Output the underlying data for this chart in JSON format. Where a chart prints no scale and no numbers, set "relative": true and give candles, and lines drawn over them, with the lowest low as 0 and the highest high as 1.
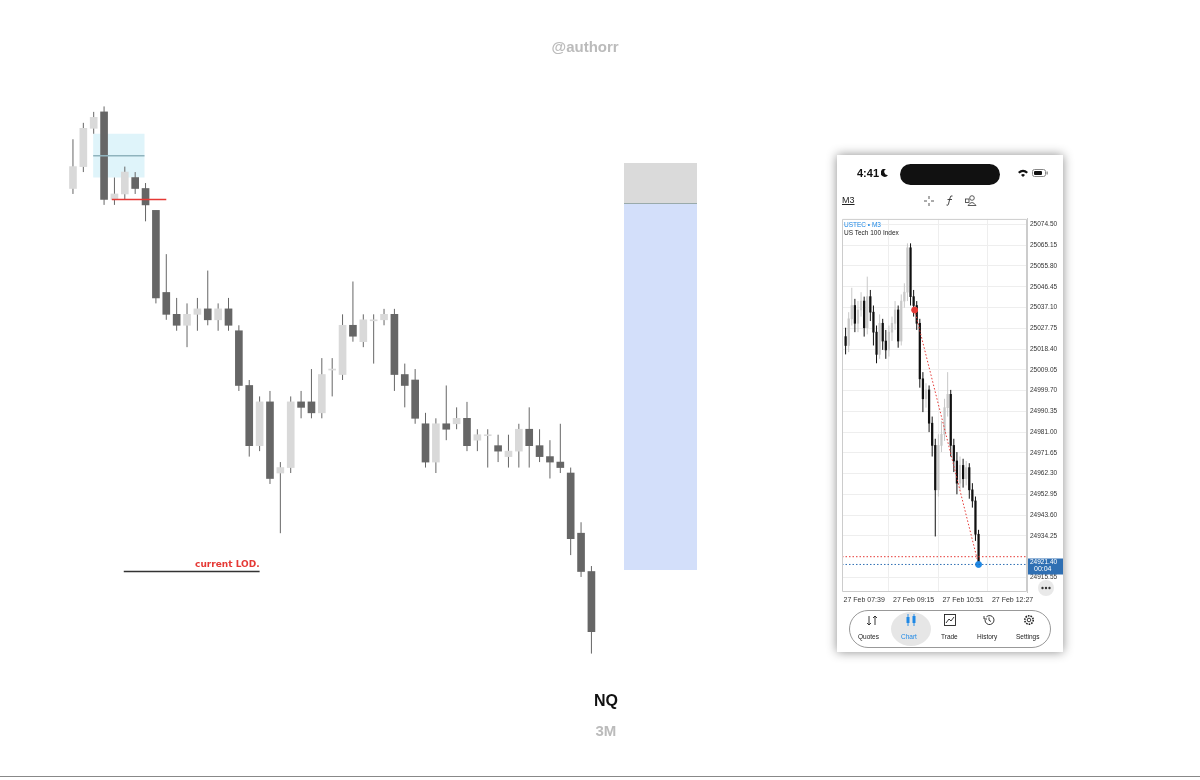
{
  "chart_data": [
    {
      "type": "candlestick",
      "title": "NQ",
      "subtitle": "3M",
      "relative": true,
      "annotations": [
        "@authorr"
      ],
      "categories": [
        null,
        null,
        null,
        null,
        null,
        null,
        null,
        null,
        null,
        null,
        null,
        null,
        null,
        null,
        null,
        null,
        null,
        null,
        null,
        null,
        null,
        null,
        null,
        null,
        null,
        null,
        null,
        null,
        null,
        null,
        null,
        null,
        null,
        null,
        null,
        null,
        null,
        null,
        null,
        null,
        null,
        null,
        null,
        null,
        null,
        null,
        null,
        null,
        null,
        null,
        null
      ],
      "ohlc": [
        [
          0.85,
          0.94,
          0.84,
          0.89
        ],
        [
          0.89,
          0.97,
          0.88,
          0.96
        ],
        [
          0.96,
          0.99,
          0.95,
          0.98
        ],
        [
          0.99,
          1.0,
          0.82,
          0.83
        ],
        [
          0.83,
          0.87,
          0.82,
          0.84
        ],
        [
          0.84,
          0.89,
          0.83,
          0.88
        ],
        [
          0.87,
          0.88,
          0.84,
          0.85
        ],
        [
          0.85,
          0.86,
          0.79,
          0.82
        ],
        [
          0.81,
          0.81,
          0.64,
          0.65
        ],
        [
          0.66,
          0.73,
          0.61,
          0.62
        ],
        [
          0.62,
          0.65,
          0.59,
          0.6
        ],
        [
          0.6,
          0.64,
          0.56,
          0.62
        ],
        [
          0.62,
          0.65,
          0.59,
          0.63
        ],
        [
          0.63,
          0.7,
          0.6,
          0.61
        ],
        [
          0.61,
          0.64,
          0.59,
          0.63
        ],
        [
          0.63,
          0.65,
          0.59,
          0.6
        ],
        [
          0.59,
          0.6,
          0.48,
          0.49
        ],
        [
          0.49,
          0.5,
          0.36,
          0.38
        ],
        [
          0.38,
          0.47,
          0.37,
          0.46
        ],
        [
          0.46,
          0.48,
          0.31,
          0.32
        ],
        [
          0.33,
          0.35,
          0.22,
          0.34
        ],
        [
          0.34,
          0.47,
          0.33,
          0.46
        ],
        [
          0.46,
          0.48,
          0.43,
          0.45
        ],
        [
          0.46,
          0.52,
          0.43,
          0.44
        ],
        [
          0.44,
          0.54,
          0.43,
          0.51
        ],
        [
          0.52,
          0.54,
          0.47,
          0.52
        ],
        [
          0.51,
          0.62,
          0.5,
          0.6
        ],
        [
          0.6,
          0.68,
          0.57,
          0.58
        ],
        [
          0.57,
          0.62,
          0.56,
          0.61
        ],
        [
          0.61,
          0.62,
          0.53,
          0.61
        ],
        [
          0.61,
          0.63,
          0.6,
          0.62
        ],
        [
          0.62,
          0.63,
          0.48,
          0.51
        ],
        [
          0.51,
          0.53,
          0.45,
          0.49
        ],
        [
          0.5,
          0.52,
          0.42,
          0.43
        ],
        [
          0.42,
          0.44,
          0.34,
          0.35
        ],
        [
          0.35,
          0.43,
          0.33,
          0.42
        ],
        [
          0.42,
          0.49,
          0.39,
          0.41
        ],
        [
          0.42,
          0.45,
          0.41,
          0.43
        ],
        [
          0.43,
          0.46,
          0.37,
          0.38
        ],
        [
          0.39,
          0.41,
          0.37,
          0.4
        ],
        [
          0.4,
          0.41,
          0.34,
          0.4
        ],
        [
          0.38,
          0.4,
          0.35,
          0.37
        ],
        [
          0.36,
          0.4,
          0.34,
          0.37
        ],
        [
          0.37,
          0.42,
          0.34,
          0.41
        ],
        [
          0.41,
          0.45,
          0.34,
          0.38
        ],
        [
          0.38,
          0.41,
          0.35,
          0.36
        ],
        [
          0.36,
          0.39,
          0.32,
          0.35
        ],
        [
          0.35,
          0.42,
          0.33,
          0.34
        ],
        [
          0.33,
          0.34,
          0.18,
          0.21
        ],
        [
          0.22,
          0.24,
          0.14,
          0.15
        ],
        [
          0.15,
          0.16,
          0,
          0.04
        ]
      ],
      "colors": [
        "#d9d9d9",
        "#d9d9d9",
        "#d9d9d9",
        "#666666",
        "#d9d9d9",
        "#d9d9d9",
        "#666666",
        "#666666",
        "#666666",
        "#666666",
        "#666666",
        "#d9d9d9",
        "#d9d9d9",
        "#666666",
        "#d9d9d9",
        "#666666",
        "#666666",
        "#666666",
        "#d9d9d9",
        "#666666",
        "#d9d9d9",
        "#d9d9d9",
        "#666666",
        "#666666",
        "#d9d9d9",
        "#d9d9d9",
        "#d9d9d9",
        "#666666",
        "#d9d9d9",
        "#d9d9d9",
        "#d9d9d9",
        "#666666",
        "#666666",
        "#666666",
        "#666666",
        "#d9d9d9",
        "#666666",
        "#d9d9d9",
        "#666666",
        "#d9d9d9",
        "#d9d9d9",
        "#666666",
        "#d9d9d9",
        "#d9d9d9",
        "#666666",
        "#666666",
        "#666666",
        "#666666",
        "#666666",
        "#666666",
        "#666666"
      ],
      "ref_lines": [
        {
          "axis": "y",
          "value": 0.83,
          "color": "#e53935"
        },
        {
          "axis": "y",
          "value": 0.91,
          "color": "#8fb3bd"
        },
        {
          "axis": "y",
          "value": 0.15,
          "label": "current LOD.",
          "color": "#333333"
        }
      ],
      "bands": [
        {
          "axis": "y",
          "from": 0.87,
          "to": 0.95,
          "color": "#dff4fa"
        }
      ]
    },
    {
      "type": "candlestick",
      "title": "USTEC • M3",
      "subtitle": "US Tech 100 Index",
      "grid": true,
      "annotations": [
        "4:41",
        "M3",
        "Quotes",
        "Chart",
        "Trade",
        "History",
        "Settings",
        "00:04"
      ],
      "x": [
        "--02-27T07:03",
        "--02-27T07:09",
        "--02-27T07:15",
        "--02-27T07:21",
        "--02-27T07:27",
        "--02-27T07:33",
        "--02-27T07:39",
        "--02-27T07:45",
        "--02-27T07:51",
        "--02-27T07:57",
        "--02-27T08:03",
        "--02-27T08:09",
        "--02-27T08:15",
        "--02-27T08:21",
        "--02-27T08:27",
        "--02-27T08:33",
        "--02-27T08:39",
        "--02-27T08:45",
        "--02-27T08:51",
        "--02-27T08:57",
        "--02-27T09:03",
        "--02-27T09:09",
        "--02-27T09:15",
        "--02-27T09:21",
        "--02-27T09:27",
        "--02-27T09:33",
        "--02-27T09:39",
        "--02-27T09:45",
        "--02-27T09:51",
        "--02-27T09:57",
        "--02-27T10:03",
        "--02-27T10:09",
        "--02-27T10:15",
        "--02-27T10:21",
        "--02-27T10:27",
        "--02-27T10:33",
        "--02-27T10:39",
        "--02-27T10:45",
        "--02-27T10:51",
        "--02-27T10:57",
        "--02-27T11:03",
        "--02-27T11:09",
        "--02-27T11:15",
        "--02-27T11:21"
      ],
      "ohlc": [
        [
          25024,
          25028,
          25016,
          25020
        ],
        [
          25020,
          25035,
          25017,
          25032
        ],
        [
          25032,
          25046,
          25029,
          25038
        ],
        [
          25038,
          25041,
          25026,
          25030
        ],
        [
          25030,
          25040,
          25026,
          25036
        ],
        [
          25036,
          25044,
          25033,
          25040
        ],
        [
          25040,
          25042,
          25024,
          25028
        ],
        [
          25028,
          25051,
          25025,
          25042
        ],
        [
          25042,
          25045,
          25031,
          25035
        ],
        [
          25035,
          25038,
          25020,
          25026
        ],
        [
          25026,
          25029,
          25012,
          25016
        ],
        [
          25016,
          25034,
          25014,
          25030
        ],
        [
          25030,
          25032,
          25018,
          25022
        ],
        [
          25022,
          25027,
          25014,
          25018
        ],
        [
          25018,
          25029,
          25015,
          25026
        ],
        [
          25026,
          25033,
          25022,
          25030
        ],
        [
          25030,
          25040,
          25027,
          25036
        ],
        [
          25036,
          25038,
          25019,
          25022
        ],
        [
          25022,
          25043,
          25020,
          25040
        ],
        [
          25040,
          25048,
          25037,
          25044
        ],
        [
          25044,
          25066,
          25040,
          25064
        ],
        [
          25064,
          25066,
          25038,
          25042
        ],
        [
          25042,
          25045,
          25033,
          25038
        ],
        [
          25038,
          25040,
          25027,
          25030
        ],
        [
          25030,
          25032,
          25001,
          25005
        ],
        [
          25005,
          25008,
          24990,
          24996
        ],
        [
          24996,
          25003,
          24992,
          25000
        ],
        [
          25000,
          25002,
          24981,
          24985
        ],
        [
          24985,
          24988,
          24970,
          24975
        ],
        [
          24975,
          24978,
          24934,
          24955
        ],
        [
          24955,
          24980,
          24952,
          24975
        ],
        [
          24975,
          24986,
          24972,
          24980
        ],
        [
          24980,
          24996,
          24977,
          24992
        ],
        [
          24992,
          25008,
          24988,
          24998
        ],
        [
          24998,
          25000,
          24970,
          24975
        ],
        [
          24975,
          24978,
          24963,
          24968
        ],
        [
          24968,
          24972,
          24953,
          24958
        ],
        [
          24958,
          24970,
          24955,
          24966
        ],
        [
          24966,
          24969,
          24956,
          24960
        ],
        [
          24960,
          24968,
          24957,
          24965
        ],
        [
          24965,
          24967,
          24951,
          24955
        ],
        [
          24955,
          24958,
          24947,
          24950
        ],
        [
          24950,
          24952,
          24932,
          24935
        ],
        [
          24935,
          24937,
          24921.4,
          24921.4
        ]
      ],
      "colors": [
        "#111111",
        "#c8c8c8",
        "#c8c8c8",
        "#111111",
        "#c8c8c8",
        "#c8c8c8",
        "#111111",
        "#c8c8c8",
        "#111111",
        "#111111",
        "#111111",
        "#c8c8c8",
        "#111111",
        "#111111",
        "#c8c8c8",
        "#c8c8c8",
        "#c8c8c8",
        "#111111",
        "#c8c8c8",
        "#c8c8c8",
        "#c8c8c8",
        "#111111",
        "#111111",
        "#111111",
        "#111111",
        "#111111",
        "#c8c8c8",
        "#111111",
        "#111111",
        "#111111",
        "#c8c8c8",
        "#c8c8c8",
        "#c8c8c8",
        "#c8c8c8",
        "#111111",
        "#111111",
        "#111111",
        "#c8c8c8",
        "#111111",
        "#c8c8c8",
        "#111111",
        "#111111",
        "#111111",
        "#111111"
      ],
      "series": [
        {
          "type": "line",
          "x": [
            "--02-27T09:17",
            "--02-27T11:21"
          ],
          "values": [
            25036,
            24921.4
          ],
          "color": "#e53935",
          "colors": [
            "#e53935",
            "#1e88e5"
          ],
          "line_style": "dotted",
          "marker": "circle"
        }
      ],
      "xlim": [
        "--02-27T06:56",
        "--02-27T12:55"
      ],
      "xticks": [
        {
          "value": "--02-27T07:39",
          "label": "27 Feb 07:39"
        },
        {
          "value": "--02-27T09:15",
          "label": "27 Feb 09:15"
        },
        {
          "value": "--02-27T10:51",
          "label": "27 Feb 10:51"
        },
        {
          "value": "--02-27T12:27",
          "label": "27 Feb 12:27"
        }
      ],
      "ylim": [
        24909,
        25077
      ],
      "yticks": [
        {
          "value": 25074.5,
          "label": "25074.50"
        },
        {
          "value": 25065.15,
          "label": "25065.15"
        },
        {
          "value": 25055.8,
          "label": "25055.80"
        },
        {
          "value": 25046.45,
          "label": "25046.45"
        },
        {
          "value": 25037.1,
          "label": "25037.10"
        },
        {
          "value": 25027.75,
          "label": "25027.75"
        },
        {
          "value": 25018.4,
          "label": "25018.40"
        },
        {
          "value": 25009.05,
          "label": "25009.05"
        },
        {
          "value": 24999.7,
          "label": "24999.70"
        },
        {
          "value": 24990.35,
          "label": "24990.35"
        },
        {
          "value": 24981,
          "label": "24981.00"
        },
        {
          "value": 24971.65,
          "label": "24971.65"
        },
        {
          "value": 24962.3,
          "label": "24962.30"
        },
        {
          "value": 24952.95,
          "label": "24952.95"
        },
        {
          "value": 24943.6,
          "label": "24943.60"
        },
        {
          "value": 24934.25,
          "label": "24934.25"
        },
        {
          "value": 24915.55,
          "label": "24915.55"
        }
      ],
      "ref_lines": [
        {
          "axis": "y",
          "value": 24924.9,
          "color": "#e53935",
          "line_style": "dotted"
        },
        {
          "axis": "y",
          "value": 24921.4,
          "label": "24921.40",
          "color": "#2f6fb3",
          "line_style": "dotted"
        }
      ]
    }
  ]
}
